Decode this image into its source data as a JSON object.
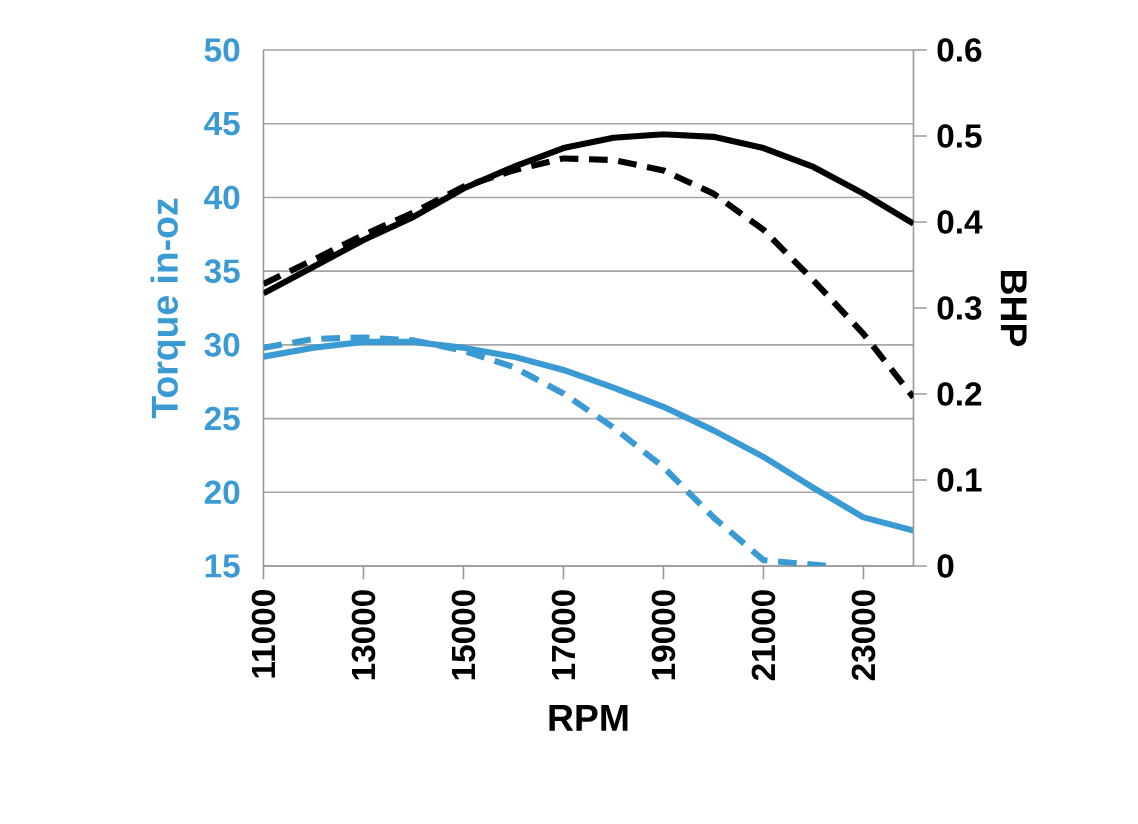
{
  "chart_data": {
    "type": "line",
    "xlabel": "RPM",
    "ylabel": "Torque in-oz",
    "y2label": "BHP",
    "xlim": [
      11000,
      24000
    ],
    "xticks": [
      11000,
      13000,
      15000,
      17000,
      19000,
      21000,
      23000
    ],
    "ylim": [
      15,
      50
    ],
    "yticks": [
      15,
      20,
      25,
      30,
      35,
      40,
      45,
      50
    ],
    "y2lim": [
      0,
      0.6
    ],
    "y2ticks": [
      0,
      0.1,
      0.2,
      0.3,
      0.4,
      0.5,
      0.6
    ],
    "grid": "y",
    "marker": "none",
    "series": [
      {
        "color": "#3a9ad4",
        "line_style": "solid",
        "x": [
          11000,
          12000,
          13000,
          14000,
          15000,
          16000,
          17000,
          18000,
          19000,
          20000,
          21000,
          22000,
          23000,
          24000
        ],
        "values": [
          29.2,
          29.8,
          30.2,
          30.2,
          29.8,
          29.2,
          28.3,
          27.1,
          25.8,
          24.2,
          22.4,
          20.3,
          18.3,
          17.4
        ]
      },
      {
        "color": "#3a9ad4",
        "line_style": "dashed",
        "x": [
          11000,
          12000,
          13000,
          14000,
          15000,
          16000,
          17000,
          18000,
          19000,
          20000,
          21000,
          22270
        ],
        "values": [
          29.8,
          30.4,
          30.5,
          30.3,
          29.6,
          28.5,
          26.7,
          24.4,
          21.7,
          18.3,
          15.4,
          15
        ]
      },
      {
        "color": "#000000",
        "line_style": "solid",
        "axis": "y2",
        "x": [
          11000,
          12000,
          13000,
          14000,
          15000,
          16000,
          17000,
          18000,
          19000,
          20000,
          21000,
          22000,
          23000,
          24000
        ],
        "values": [
          0.317,
          0.348,
          0.379,
          0.406,
          0.439,
          0.464,
          0.486,
          0.498,
          0.502,
          0.499,
          0.486,
          0.464,
          0.433,
          0.398
        ]
      },
      {
        "color": "#000000",
        "line_style": "dashed",
        "axis": "y2",
        "x": [
          11000,
          12000,
          13000,
          14000,
          15000,
          16000,
          17000,
          18000,
          19000,
          20000,
          21000,
          22000,
          23000,
          24000
        ],
        "values": [
          0.328,
          0.356,
          0.385,
          0.411,
          0.441,
          0.46,
          0.474,
          0.472,
          0.46,
          0.433,
          0.391,
          0.332,
          0.27,
          0.196
        ]
      }
    ]
  }
}
